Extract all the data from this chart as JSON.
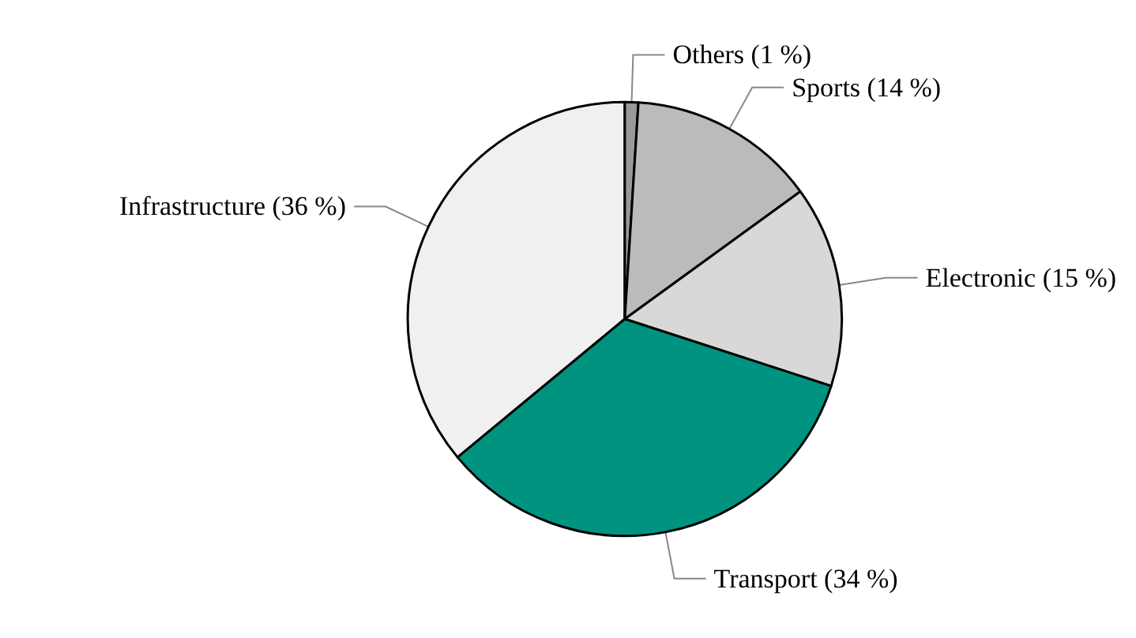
{
  "chart_data": {
    "type": "pie",
    "categories": [
      "Infrastructure (36 %)",
      "Others (1 %)",
      "Sports (14 %)",
      "Electronic (15 %)",
      "Transport (34 %)"
    ],
    "values": [
      36,
      1,
      14,
      15,
      34
    ],
    "colors": [
      "#f0f0f0",
      "#999999",
      "#bbbbbb",
      "#d8d8d8",
      "#009480"
    ],
    "legend": false
  }
}
